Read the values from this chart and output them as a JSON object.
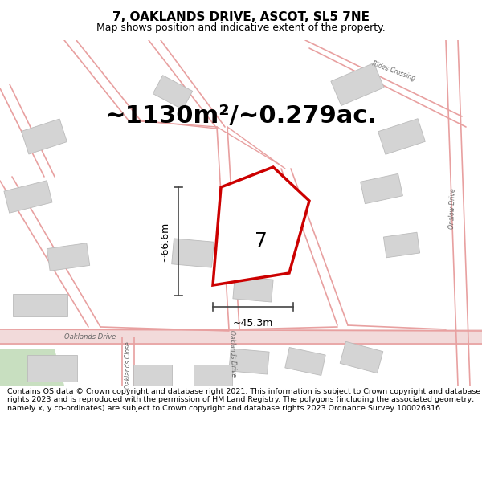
{
  "title": "7, OAKLANDS DRIVE, ASCOT, SL5 7NE",
  "subtitle": "Map shows position and indicative extent of the property.",
  "area_text": "~1130m²/~0.279ac.",
  "label_7": "7",
  "dim_height": "~66.6m",
  "dim_width": "~45.3m",
  "footer": "Contains OS data © Crown copyright and database right 2021. This information is subject to Crown copyright and database rights 2023 and is reproduced with the permission of HM Land Registry. The polygons (including the associated geometry, namely x, y co-ordinates) are subject to Crown copyright and database rights 2023 Ordnance Survey 100026316.",
  "bg_color": "#ffffff",
  "road_color": "#e8a0a0",
  "road_fill_color": "#f2dada",
  "building_color": "#d4d4d4",
  "building_edge_color": "#bbbbbb",
  "highlight_color": "#cc0000",
  "dim_color": "#444444",
  "green_color": "#c8dfc0",
  "title_fontsize": 11,
  "subtitle_fontsize": 9,
  "area_fontsize": 22,
  "label_fontsize": 18,
  "dim_fontsize": 9,
  "street_fontsize": 6,
  "footer_fontsize": 6.8,
  "fig_width": 6.0,
  "fig_height": 6.25,
  "dpi": 100
}
